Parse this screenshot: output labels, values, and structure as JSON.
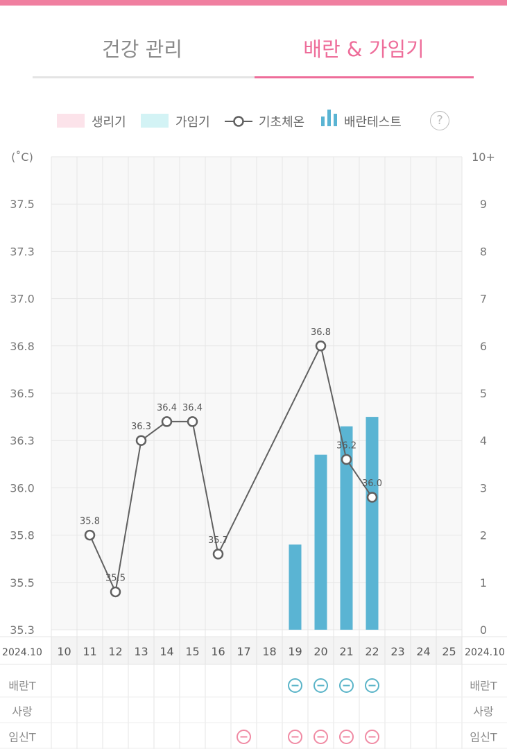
{
  "tabs": [
    {
      "label": "건강 관리",
      "active": false
    },
    {
      "label": "배란 & 가임기",
      "active": true
    }
  ],
  "legend": {
    "period": {
      "label": "생리기",
      "color": "#fce3ea"
    },
    "fertile": {
      "label": "가임기",
      "color": "#d3f3f5"
    },
    "bbt": {
      "label": "기초체온",
      "color": "#606060"
    },
    "ovu_test": {
      "label": "배란테스트",
      "color": "#5ab4d3"
    },
    "help_icon": "?"
  },
  "chart_data": {
    "type": "line",
    "x": [
      "10",
      "11",
      "12",
      "13",
      "14",
      "15",
      "16",
      "17",
      "18",
      "19",
      "20",
      "21",
      "22",
      "23",
      "24",
      "25"
    ],
    "x_side_label": "2024.10",
    "y_left_unit": "(˚C)",
    "y_left_ticks": [
      "37.5",
      "37.3",
      "37.0",
      "36.8",
      "36.5",
      "36.3",
      "36.0",
      "35.8",
      "35.5",
      "35.3"
    ],
    "y_left_range": [
      35.3,
      37.8
    ],
    "y_right_ticks": [
      "10+",
      "9",
      "8",
      "7",
      "6",
      "5",
      "4",
      "3",
      "2",
      "1",
      "0"
    ],
    "y_right_range": [
      0,
      10
    ],
    "series": [
      {
        "name": "기초체온",
        "type": "line",
        "axis": "left",
        "points": [
          {
            "x": "11",
            "y": 35.8,
            "label": "35.8"
          },
          {
            "x": "12",
            "y": 35.5,
            "label": "35.5"
          },
          {
            "x": "13",
            "y": 36.3,
            "label": "36.3"
          },
          {
            "x": "14",
            "y": 36.4,
            "label": "36.4"
          },
          {
            "x": "15",
            "y": 36.4,
            "label": "36.4"
          },
          {
            "x": "16",
            "y": 35.7,
            "label": "35.7"
          },
          {
            "x": "20",
            "y": 36.8,
            "label": "36.8"
          },
          {
            "x": "21",
            "y": 36.2,
            "label": "36.2"
          },
          {
            "x": "22",
            "y": 36.0,
            "label": "36.0"
          }
        ]
      },
      {
        "name": "배란테스트",
        "type": "bar",
        "axis": "right",
        "points": [
          {
            "x": "19",
            "y": 1.8
          },
          {
            "x": "20",
            "y": 3.7
          },
          {
            "x": "21",
            "y": 4.3
          },
          {
            "x": "22",
            "y": 4.5
          }
        ]
      }
    ],
    "grid": true
  },
  "tracks": [
    {
      "label": "배란T",
      "days": [
        "19",
        "20",
        "21",
        "22"
      ],
      "color": "#5ab4c8"
    },
    {
      "label": "사랑",
      "days": [],
      "color": "#cccccc"
    },
    {
      "label": "임신T",
      "days": [
        "17",
        "19",
        "20",
        "21",
        "22"
      ],
      "color": "#f08aa3"
    }
  ]
}
